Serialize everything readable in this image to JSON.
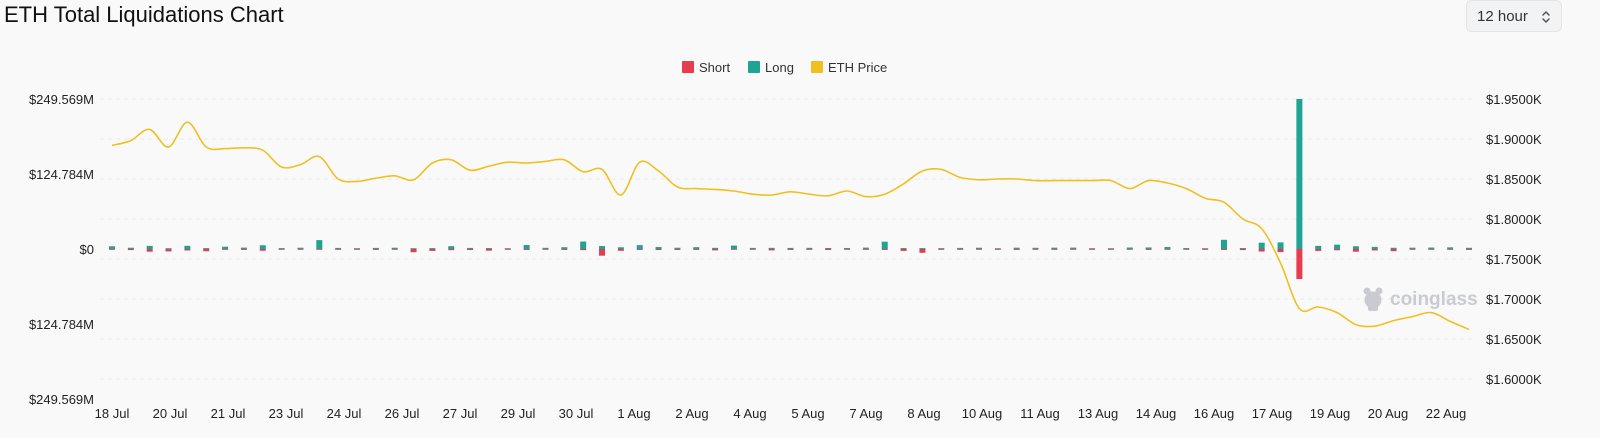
{
  "header": {
    "title": "ETH Total Liquidations Chart",
    "interval": "12 hour"
  },
  "icons": {
    "interval": "chevron-up-down-icon",
    "watermark": "coinglass-logo-icon"
  },
  "watermark": "coinglass",
  "chart_data": {
    "type": "bar",
    "title": "ETH Total Liquidations Chart",
    "legend": {
      "placement": "top-center",
      "items": [
        {
          "name": "Short",
          "color": "#e73b4f"
        },
        {
          "name": "Long",
          "color": "#1fa493"
        },
        {
          "name": "ETH Price",
          "color": "#f0c020"
        }
      ]
    },
    "y_left": {
      "ticks": [
        "$249.569M",
        "$124.784M",
        "$0",
        "$124.784M",
        "$249.569M"
      ],
      "range": [
        -249.569,
        249.569
      ],
      "unit": "million USD (long plotted above zero, short below)"
    },
    "y_right": {
      "ticks": [
        "$1.9500K",
        "$1.9000K",
        "$1.8500K",
        "$1.8000K",
        "$1.7500K",
        "$1.7000K",
        "$1.6500K",
        "$1.6000K"
      ],
      "range": [
        1575,
        1950
      ],
      "unit": "USD"
    },
    "x_ticks": [
      "18 Jul",
      "20 Jul",
      "21 Jul",
      "23 Jul",
      "24 Jul",
      "26 Jul",
      "27 Jul",
      "29 Jul",
      "30 Jul",
      "1 Aug",
      "2 Aug",
      "4 Aug",
      "5 Aug",
      "7 Aug",
      "8 Aug",
      "10 Aug",
      "11 Aug",
      "13 Aug",
      "14 Aug",
      "16 Aug",
      "17 Aug",
      "19 Aug",
      "20 Aug",
      "22 Aug"
    ],
    "grid": true,
    "series": [
      {
        "name": "Long",
        "unit": "million USD",
        "values": [
          4.5,
          2.1,
          5.2,
          1.2,
          5.3,
          1.5,
          3.8,
          2.3,
          6.2,
          1.5,
          2.1,
          14.8,
          1.8,
          1.2,
          1.8,
          2.1,
          1.2,
          1.5,
          4.7,
          1.8,
          1.6,
          1.2,
          6.6,
          1.9,
          3.0,
          12.4,
          4.9,
          2.9,
          6.4,
          3.3,
          2.1,
          3.1,
          1.9,
          5.7,
          1.8,
          1.9,
          1.8,
          1.9,
          1.7,
          1.7,
          2.3,
          12.2,
          1.6,
          1.5,
          1.4,
          1.8,
          2.1,
          1.2,
          2.2,
          2.0,
          2.2,
          2.3,
          1.1,
          1.0,
          2.5,
          2.6,
          3.4,
          1.6,
          0.9,
          15.3,
          1.6,
          10.5,
          11.0,
          249.569,
          5.2,
          7.2,
          4.6,
          3.5,
          2.0,
          2.2,
          2.4,
          2.8,
          2.0
        ]
      },
      {
        "name": "Short",
        "unit": "million USD",
        "values": [
          1.2,
          1.8,
          4.5,
          4.0,
          2.4,
          3.8,
          1.4,
          1.5,
          2.9,
          1.2,
          1.3,
          1.2,
          1.0,
          1.3,
          1.5,
          1.0,
          5.3,
          3.2,
          1.9,
          1.7,
          2.8,
          1.0,
          1.6,
          1.3,
          1.5,
          1.9,
          11.1,
          3.0,
          1.5,
          1.7,
          1.6,
          1.5,
          2.3,
          1.3,
          1.1,
          2.3,
          1.6,
          1.4,
          1.7,
          1.1,
          1.4,
          1.6,
          3.2,
          6.3,
          1.4,
          1.3,
          1.2,
          1.0,
          1.5,
          1.2,
          1.4,
          1.2,
          1.0,
          1.3,
          1.1,
          1.5,
          1.3,
          1.1,
          1.4,
          1.6,
          1.8,
          4.2,
          5.1,
          50.0,
          3.2,
          2.1,
          4.5,
          2.4,
          3.6,
          1.2,
          1.4,
          1.3,
          1.5
        ]
      },
      {
        "name": "ETH Price",
        "unit": "USD",
        "values": [
          1892,
          1898,
          1912,
          1890,
          1921,
          1890,
          1888,
          1889,
          1886,
          1865,
          1868,
          1878,
          1850,
          1847,
          1851,
          1854,
          1849,
          1870,
          1874,
          1861,
          1866,
          1871,
          1870,
          1872,
          1874,
          1859,
          1862,
          1830,
          1871,
          1860,
          1840,
          1838,
          1837,
          1835,
          1831,
          1830,
          1834,
          1831,
          1829,
          1835,
          1828,
          1831,
          1844,
          1860,
          1862,
          1852,
          1849,
          1850,
          1850,
          1848,
          1848,
          1848,
          1848,
          1848,
          1838,
          1848,
          1845,
          1838,
          1826,
          1821,
          1800,
          1788,
          1745,
          1688,
          1690,
          1683,
          1668,
          1666,
          1673,
          1678,
          1683,
          1672,
          1662
        ]
      }
    ]
  }
}
